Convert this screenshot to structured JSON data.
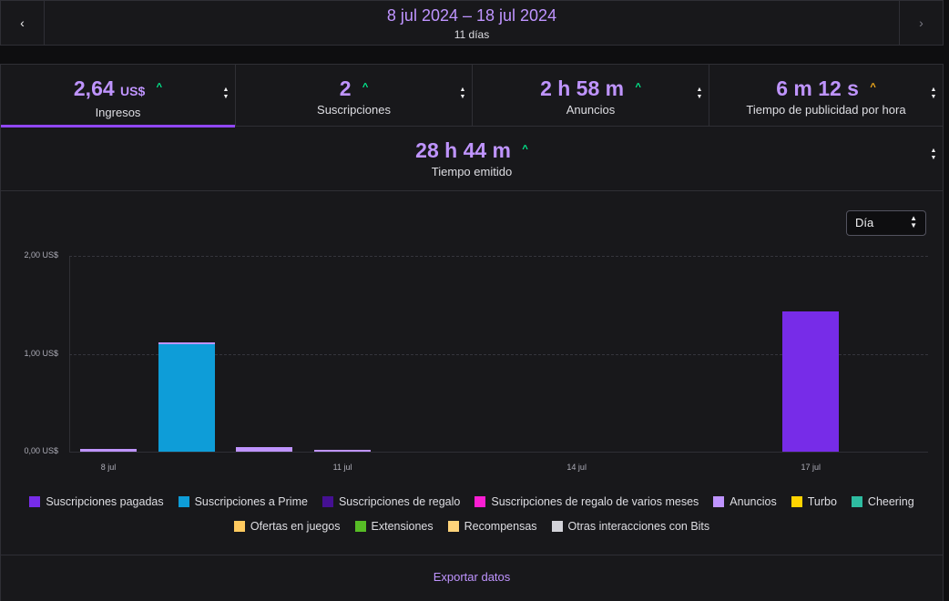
{
  "header": {
    "date_range": "8 jul 2024 – 18 jul 2024",
    "days": "11 días",
    "prev_label": "‹",
    "next_label": "›"
  },
  "stats": [
    {
      "value": "2,64",
      "unit": "US$",
      "trend": "up",
      "trend_glyph": "^",
      "label": "Ingresos",
      "active": true
    },
    {
      "value": "2",
      "unit": "",
      "trend": "up",
      "trend_glyph": "^",
      "label": "Suscripciones",
      "active": false
    },
    {
      "value": "2 h 58 m",
      "unit": "",
      "trend": "up",
      "trend_glyph": "^",
      "label": "Anuncios",
      "active": false
    },
    {
      "value": "6 m 12 s",
      "unit": "",
      "trend": "neutral",
      "trend_glyph": "^",
      "label": "Tiempo de publicidad por hora",
      "active": false
    }
  ],
  "stream_time": {
    "value": "28 h 44 m",
    "trend": "up",
    "trend_glyph": "^",
    "label": "Tiempo emitido"
  },
  "granularity": {
    "selected": "Día"
  },
  "colors": {
    "accent": "#9147ff",
    "accent_text": "#bf94ff",
    "trend_up": "#00f593",
    "trend_neutral": "#ffb31a"
  },
  "chart_data": {
    "type": "bar",
    "stacked": true,
    "title": "",
    "xlabel": "",
    "ylabel": "",
    "ylim": [
      0,
      2
    ],
    "yticks": [
      {
        "v": 0,
        "label": "0,00 US$"
      },
      {
        "v": 1,
        "label": "1,00 US$"
      },
      {
        "v": 2,
        "label": "2,00 US$"
      }
    ],
    "categories": [
      "8 jul",
      "9 jul",
      "10 jul",
      "11 jul",
      "12 jul",
      "13 jul",
      "14 jul",
      "15 jul",
      "16 jul",
      "17 jul",
      "18 jul"
    ],
    "xtick_labels": [
      "8 jul",
      "11 jul",
      "14 jul",
      "17 jul"
    ],
    "xtick_indices": [
      0,
      3,
      6,
      9
    ],
    "series": [
      {
        "name": "Suscripciones pagadas",
        "color": "#772ce8",
        "values": [
          0,
          0,
          0,
          0,
          0,
          0,
          0,
          0,
          0,
          1.43,
          0
        ]
      },
      {
        "name": "Suscripciones a Prime",
        "color": "#0e9dd8",
        "values": [
          0,
          1.1,
          0,
          0,
          0,
          0,
          0,
          0,
          0,
          0,
          0
        ]
      },
      {
        "name": "Suscripciones de regalo",
        "color": "#451093",
        "values": [
          0,
          0,
          0,
          0,
          0,
          0,
          0,
          0,
          0,
          0,
          0
        ]
      },
      {
        "name": "Suscripciones de regalo de varios meses",
        "color": "#fa1ed2",
        "values": [
          0,
          0,
          0,
          0,
          0,
          0,
          0,
          0,
          0,
          0,
          0
        ]
      },
      {
        "name": "Anuncios",
        "color": "#bf94ff",
        "values": [
          0.03,
          0.02,
          0.05,
          0.02,
          0,
          0,
          0,
          0,
          0,
          0,
          0
        ]
      },
      {
        "name": "Turbo",
        "color": "#ffd300",
        "values": [
          0,
          0,
          0,
          0,
          0,
          0,
          0,
          0,
          0,
          0,
          0
        ]
      },
      {
        "name": "Cheering",
        "color": "#2ebca1",
        "values": [
          0,
          0,
          0,
          0,
          0,
          0,
          0,
          0,
          0,
          0,
          0
        ]
      },
      {
        "name": "Ofertas en juegos",
        "color": "#ffca5f",
        "values": [
          0,
          0,
          0,
          0,
          0,
          0,
          0,
          0,
          0,
          0,
          0
        ]
      },
      {
        "name": "Extensiones",
        "color": "#57bc26",
        "values": [
          0,
          0,
          0,
          0,
          0,
          0,
          0,
          0,
          0,
          0,
          0
        ]
      },
      {
        "name": "Recompensas",
        "color": "#ffd37a",
        "values": [
          0,
          0,
          0,
          0,
          0,
          0,
          0,
          0,
          0,
          0,
          0
        ]
      },
      {
        "name": "Otras interacciones con Bits",
        "color": "#d3d3d9",
        "values": [
          0,
          0,
          0,
          0,
          0,
          0,
          0,
          0,
          0,
          0,
          0
        ]
      }
    ],
    "legend_position": "bottom"
  },
  "footer": {
    "export_label": "Exportar datos"
  }
}
